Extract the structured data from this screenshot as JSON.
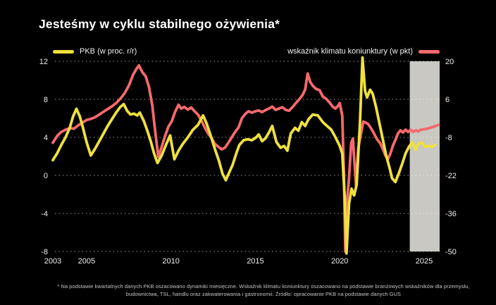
{
  "title": "Jesteśmy w cyklu stabilnego ożywienia*",
  "legend": {
    "pkb_label": "PKB (w proc. r/r)",
    "climate_label": "wskaźnik klimatu koniunktury (w pkt)"
  },
  "footnote": {
    "line1": "* Na podstawie kwartalnych danych PKB oszacowano dynamiki miesięczne. Wskaźnik klimatu koniunktury oszacowano na podstawie branżowych wskaźników dla przemysłu,",
    "line2": "budownictwa, TSL, handlu oraz zakwaterowania i gastronomii. Źródło: opracowanie PKB na podstawie danych GUS"
  },
  "colors": {
    "background": "#000000",
    "title_text": "#ffffff",
    "axis_text": "#efefef",
    "grid": "rgba(255,255,255,0.6)",
    "pkb_line": "#EFE13D",
    "climate_line": "#F5696C",
    "highlight_band": "#C9C8C2",
    "footnote_text": "#c7c7c7"
  },
  "chart_data": {
    "type": "line",
    "title": "Jesteśmy w cyklu stabilnego ożywienia*",
    "grid": true,
    "legend_position": "top",
    "x_axis": {
      "range": [
        2003,
        2025.92
      ],
      "ticks": [
        2003,
        2005,
        2010,
        2015,
        2020,
        2025
      ],
      "tick_labels": [
        "2003",
        "2005",
        "2010",
        "2015",
        "2020",
        "2025"
      ]
    },
    "y_axis_left": {
      "label": "PKB (w proc. r/r)",
      "range": [
        -8,
        12
      ],
      "ticks": [
        12,
        8,
        4,
        0,
        -4,
        -8
      ]
    },
    "y_axis_right": {
      "label": "wskaźnik klimatu koniunktury (w pkt)",
      "range": [
        -50,
        20
      ],
      "ticks": [
        20,
        6,
        -8,
        -22,
        -36,
        -50
      ]
    },
    "highlight_region": {
      "x_from": 2024.15,
      "x_to": 2025.92
    },
    "series": [
      {
        "name": "wskaźnik klimatu koniunktury (w pkt)",
        "axis": "right",
        "color": "#F5696C",
        "points": [
          [
            2003.0,
            -10
          ],
          [
            2003.25,
            -7.5
          ],
          [
            2003.5,
            -6
          ],
          [
            2003.75,
            -5.2
          ],
          [
            2004.0,
            -4.6
          ],
          [
            2004.25,
            -4.8
          ],
          [
            2004.5,
            -3.6
          ],
          [
            2004.75,
            -2.6
          ],
          [
            2005.0,
            -1.6
          ],
          [
            2005.25,
            -1.2
          ],
          [
            2005.5,
            -0.6
          ],
          [
            2005.75,
            0.4
          ],
          [
            2006.0,
            1.4
          ],
          [
            2006.25,
            2.4
          ],
          [
            2006.5,
            3.4
          ],
          [
            2006.75,
            4.6
          ],
          [
            2007.0,
            6.2
          ],
          [
            2007.25,
            8.2
          ],
          [
            2007.5,
            11
          ],
          [
            2007.75,
            15
          ],
          [
            2007.95,
            17.2
          ],
          [
            2008.1,
            18.5
          ],
          [
            2008.3,
            16
          ],
          [
            2008.5,
            14.5
          ],
          [
            2008.7,
            10.5
          ],
          [
            2008.9,
            3.5
          ],
          [
            2009.05,
            -5
          ],
          [
            2009.25,
            -15.2
          ],
          [
            2009.45,
            -11.5
          ],
          [
            2009.65,
            -7.5
          ],
          [
            2009.85,
            -4
          ],
          [
            2010.05,
            -2
          ],
          [
            2010.25,
            1.5
          ],
          [
            2010.45,
            4
          ],
          [
            2010.6,
            2.6
          ],
          [
            2010.8,
            3.2
          ],
          [
            2011.0,
            2.2
          ],
          [
            2011.2,
            3
          ],
          [
            2011.4,
            1.6
          ],
          [
            2011.6,
            0.4
          ],
          [
            2011.8,
            -1.8
          ],
          [
            2012.0,
            -4.4
          ],
          [
            2012.2,
            -6.6
          ],
          [
            2012.4,
            -8.2
          ],
          [
            2012.6,
            -10.4
          ],
          [
            2012.8,
            -11.4
          ],
          [
            2013.0,
            -12.4
          ],
          [
            2013.2,
            -11.8
          ],
          [
            2013.4,
            -10
          ],
          [
            2013.6,
            -8
          ],
          [
            2013.8,
            -6
          ],
          [
            2014.0,
            -4.4
          ],
          [
            2014.2,
            -1
          ],
          [
            2014.4,
            0.6
          ],
          [
            2014.6,
            1.6
          ],
          [
            2014.8,
            1.1
          ],
          [
            2015.0,
            1.6
          ],
          [
            2015.2,
            1.9
          ],
          [
            2015.4,
            1.3
          ],
          [
            2015.6,
            2
          ],
          [
            2015.8,
            2.6
          ],
          [
            2016.0,
            3.3
          ],
          [
            2016.2,
            2.1
          ],
          [
            2016.4,
            2.6
          ],
          [
            2016.6,
            3.1
          ],
          [
            2016.8,
            2.1
          ],
          [
            2017.0,
            1.8
          ],
          [
            2017.2,
            3.1
          ],
          [
            2017.4,
            4.6
          ],
          [
            2017.6,
            6
          ],
          [
            2017.8,
            7.6
          ],
          [
            2017.95,
            9.6
          ],
          [
            2018.1,
            15.5
          ],
          [
            2018.25,
            12.4
          ],
          [
            2018.4,
            11
          ],
          [
            2018.6,
            9.8
          ],
          [
            2018.8,
            9.4
          ],
          [
            2019.0,
            7
          ],
          [
            2019.2,
            6.2
          ],
          [
            2019.4,
            4.8
          ],
          [
            2019.6,
            3.2
          ],
          [
            2019.75,
            2.6
          ],
          [
            2019.9,
            3.6
          ],
          [
            2020.0,
            4.6
          ],
          [
            2020.15,
            0
          ],
          [
            2020.25,
            -22
          ],
          [
            2020.33,
            -50
          ],
          [
            2020.45,
            -30
          ],
          [
            2020.55,
            -23
          ],
          [
            2020.68,
            -10
          ],
          [
            2020.78,
            -8.5
          ],
          [
            2020.88,
            -18
          ],
          [
            2020.97,
            -26
          ],
          [
            2021.1,
            -12
          ],
          [
            2021.25,
            -7
          ],
          [
            2021.4,
            -2.2
          ],
          [
            2021.55,
            -2.6
          ],
          [
            2021.7,
            -3.2
          ],
          [
            2021.85,
            -4.6
          ],
          [
            2022.0,
            -6.2
          ],
          [
            2022.2,
            -8.6
          ],
          [
            2022.4,
            -10.2
          ],
          [
            2022.55,
            -12.2
          ],
          [
            2022.7,
            -14.6
          ],
          [
            2022.85,
            -16
          ],
          [
            2023.0,
            -14
          ],
          [
            2023.15,
            -11
          ],
          [
            2023.3,
            -9
          ],
          [
            2023.45,
            -6.6
          ],
          [
            2023.6,
            -5.4
          ],
          [
            2023.75,
            -6.2
          ],
          [
            2023.9,
            -5.2
          ],
          [
            2024.05,
            -6
          ],
          [
            2024.2,
            -5.2
          ],
          [
            2024.35,
            -6
          ],
          [
            2024.5,
            -5.4
          ],
          [
            2024.65,
            -5.8
          ],
          [
            2024.8,
            -5.2
          ],
          [
            2025.0,
            -5
          ],
          [
            2025.2,
            -4.8
          ],
          [
            2025.4,
            -4.4
          ],
          [
            2025.6,
            -4
          ],
          [
            2025.85,
            -3.4
          ]
        ]
      },
      {
        "name": "PKB (w proc. r/r)",
        "axis": "left",
        "color": "#EFE13D",
        "points": [
          [
            2003.0,
            1.6
          ],
          [
            2003.25,
            2.3
          ],
          [
            2003.5,
            3.2
          ],
          [
            2003.75,
            4.0
          ],
          [
            2004.0,
            5.0
          ],
          [
            2004.2,
            6.2
          ],
          [
            2004.4,
            7.0
          ],
          [
            2004.6,
            6.2
          ],
          [
            2004.8,
            4.9
          ],
          [
            2005.0,
            3.5
          ],
          [
            2005.25,
            2.1
          ],
          [
            2005.5,
            2.8
          ],
          [
            2005.75,
            3.6
          ],
          [
            2006.0,
            4.4
          ],
          [
            2006.25,
            5.2
          ],
          [
            2006.5,
            5.9
          ],
          [
            2006.75,
            6.6
          ],
          [
            2007.0,
            7.2
          ],
          [
            2007.2,
            7.5
          ],
          [
            2007.4,
            6.8
          ],
          [
            2007.6,
            6.4
          ],
          [
            2007.8,
            6.5
          ],
          [
            2008.0,
            6.3
          ],
          [
            2008.15,
            6.6
          ],
          [
            2008.4,
            5.7
          ],
          [
            2008.6,
            4.7
          ],
          [
            2008.8,
            3.6
          ],
          [
            2009.0,
            2.3
          ],
          [
            2009.2,
            1.3
          ],
          [
            2009.45,
            2.1
          ],
          [
            2009.7,
            3.2
          ],
          [
            2009.95,
            4.2
          ],
          [
            2010.2,
            1.7
          ],
          [
            2010.45,
            2.6
          ],
          [
            2010.7,
            3.3
          ],
          [
            2011.0,
            4.0
          ],
          [
            2011.3,
            4.8
          ],
          [
            2011.6,
            5.3
          ],
          [
            2011.9,
            6.3
          ],
          [
            2012.1,
            5.5
          ],
          [
            2012.35,
            4.2
          ],
          [
            2012.6,
            2.8
          ],
          [
            2012.85,
            1.5
          ],
          [
            2013.05,
            0.2
          ],
          [
            2013.25,
            -0.5
          ],
          [
            2013.45,
            0.3
          ],
          [
            2013.65,
            1.1
          ],
          [
            2013.85,
            2.2
          ],
          [
            2014.05,
            3.2
          ],
          [
            2014.3,
            3.7
          ],
          [
            2014.55,
            3.8
          ],
          [
            2014.8,
            3.7
          ],
          [
            2015.05,
            4.0
          ],
          [
            2015.2,
            4.3
          ],
          [
            2015.4,
            3.6
          ],
          [
            2015.6,
            3.9
          ],
          [
            2015.8,
            4.5
          ],
          [
            2016.0,
            5.2
          ],
          [
            2016.25,
            3.5
          ],
          [
            2016.5,
            2.9
          ],
          [
            2016.7,
            3.1
          ],
          [
            2016.9,
            2.6
          ],
          [
            2017.1,
            4.4
          ],
          [
            2017.35,
            5.0
          ],
          [
            2017.55,
            4.7
          ],
          [
            2017.75,
            5.6
          ],
          [
            2017.95,
            5.2
          ],
          [
            2018.15,
            5.9
          ],
          [
            2018.4,
            6.4
          ],
          [
            2018.7,
            6.3
          ],
          [
            2019.0,
            5.6
          ],
          [
            2019.25,
            5.2
          ],
          [
            2019.5,
            4.8
          ],
          [
            2019.75,
            4.0
          ],
          [
            2020.0,
            3.1
          ],
          [
            2020.15,
            2.3
          ],
          [
            2020.3,
            -2.5
          ],
          [
            2020.4,
            -8.2
          ],
          [
            2020.55,
            -3.0
          ],
          [
            2020.7,
            -1.4
          ],
          [
            2020.85,
            -2.1
          ],
          [
            2021.0,
            -1.0
          ],
          [
            2021.2,
            5.5
          ],
          [
            2021.35,
            12.4
          ],
          [
            2021.5,
            8.9
          ],
          [
            2021.62,
            8.2
          ],
          [
            2021.8,
            9.0
          ],
          [
            2021.95,
            8.6
          ],
          [
            2022.15,
            7.2
          ],
          [
            2022.35,
            5.5
          ],
          [
            2022.55,
            3.8
          ],
          [
            2022.75,
            2.1
          ],
          [
            2022.95,
            0.8
          ],
          [
            2023.1,
            -0.3
          ],
          [
            2023.3,
            -0.7
          ],
          [
            2023.5,
            0.2
          ],
          [
            2023.7,
            1.2
          ],
          [
            2023.9,
            2.3
          ],
          [
            2024.1,
            3.0
          ],
          [
            2024.3,
            3.5
          ],
          [
            2024.5,
            2.7
          ],
          [
            2024.65,
            3.3
          ],
          [
            2024.85,
            3.5
          ],
          [
            2025.05,
            3.0
          ],
          [
            2025.25,
            3.1
          ],
          [
            2025.45,
            3.0
          ],
          [
            2025.65,
            3.2
          ]
        ]
      }
    ]
  }
}
